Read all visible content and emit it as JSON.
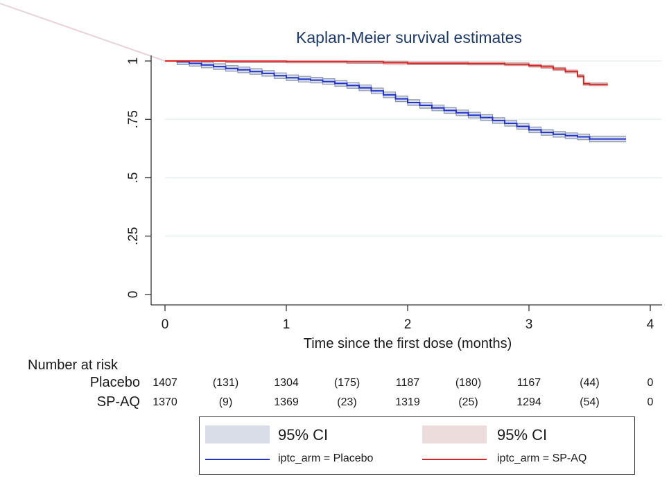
{
  "chart_data": {
    "type": "line",
    "title": "Kaplan-Meier survival estimates",
    "xlabel": "Time since the first dose (months)",
    "ylabel": "",
    "xlim": [
      0,
      4
    ],
    "ylim": [
      0,
      1
    ],
    "x_ticks": [
      "0",
      "1",
      "2",
      "3",
      "4"
    ],
    "x_tick_values": [
      0,
      1,
      2,
      3,
      4
    ],
    "y_ticks": [
      "0",
      ".25",
      ".5",
      ".75",
      "1"
    ],
    "y_tick_values": [
      0,
      0.25,
      0.5,
      0.75,
      1
    ],
    "grid": "horizontal",
    "series": [
      {
        "name": "iptc_arm = Placebo",
        "color": "#2233cc",
        "ci_color": "#d8dde8",
        "ci_edge": "#8a96ad",
        "x": [
          0,
          0.1,
          0.2,
          0.3,
          0.4,
          0.5,
          0.6,
          0.7,
          0.8,
          0.9,
          1.0,
          1.1,
          1.2,
          1.3,
          1.4,
          1.5,
          1.6,
          1.7,
          1.8,
          1.9,
          2.0,
          2.1,
          2.2,
          2.3,
          2.4,
          2.5,
          2.6,
          2.7,
          2.8,
          2.9,
          3.0,
          3.1,
          3.2,
          3.3,
          3.4,
          3.5,
          3.6,
          3.7,
          3.8
        ],
        "y": [
          1.0,
          0.996,
          0.99,
          0.983,
          0.976,
          0.968,
          0.962,
          0.955,
          0.947,
          0.937,
          0.928,
          0.922,
          0.918,
          0.912,
          0.904,
          0.895,
          0.885,
          0.872,
          0.855,
          0.838,
          0.822,
          0.81,
          0.799,
          0.788,
          0.778,
          0.768,
          0.758,
          0.745,
          0.733,
          0.72,
          0.705,
          0.694,
          0.686,
          0.68,
          0.675,
          0.666,
          0.666,
          0.666,
          0.666
        ],
        "ci_half": 0.012,
        "ci_label": "95% CI"
      },
      {
        "name": "iptc_arm = SP-AQ",
        "color": "#dd2222",
        "ci_color": "#ecdcdc",
        "ci_edge": "#c49898",
        "x": [
          0,
          0.5,
          1.0,
          1.5,
          1.8,
          2.0,
          2.5,
          2.8,
          3.0,
          3.1,
          3.2,
          3.3,
          3.4,
          3.45,
          3.5,
          3.65
        ],
        "y": [
          1.0,
          0.999,
          0.998,
          0.996,
          0.993,
          0.99,
          0.989,
          0.986,
          0.98,
          0.975,
          0.966,
          0.955,
          0.935,
          0.902,
          0.9,
          0.9
        ],
        "ci_half": 0.006,
        "ci_label": "95% CI"
      }
    ],
    "risk_table": {
      "header": "Number at risk",
      "rows": [
        {
          "label": "Placebo",
          "values": [
            "1407",
            "(131)",
            "1304",
            "(175)",
            "1187",
            "(180)",
            "1167",
            "(44)",
            "0"
          ]
        },
        {
          "label": "SP-AQ",
          "values": [
            "1370",
            "(9)",
            "1369",
            "(23)",
            "1319",
            "(25)",
            "1294",
            "(54)",
            "0"
          ]
        }
      ]
    },
    "legend": {
      "position": "bottom",
      "items": [
        {
          "label": "95% CI"
        },
        {
          "label": "95% CI"
        },
        {
          "label": "iptc_arm = Placebo"
        },
        {
          "label": "iptc_arm = SP-AQ"
        }
      ]
    }
  }
}
